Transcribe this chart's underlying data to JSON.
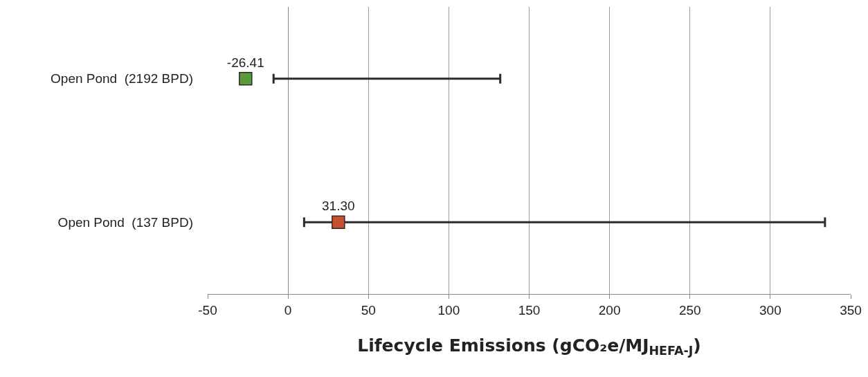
{
  "chart_data": {
    "type": "scatter",
    "orientation": "horizontal",
    "xlabel": "Lifecycle Emissions (gCO₂e/MJ$_{HEFA-J}$)",
    "categories": [
      "Open Pond  (2192 BPD)",
      "Open Pond  (137 BPD)"
    ],
    "values": [
      -26.41,
      31.3
    ],
    "value_labels": [
      "-26.41",
      "31.30"
    ],
    "colors": [
      "#5b9a3a",
      "#c9502c"
    ],
    "errors": [
      [
        -9,
        132
      ],
      [
        10,
        334
      ]
    ],
    "xlim": [
      -50,
      350
    ],
    "xticks": [
      -50,
      0,
      50,
      100,
      150,
      200,
      250,
      300,
      350
    ],
    "grid": "x",
    "marker": "square"
  }
}
